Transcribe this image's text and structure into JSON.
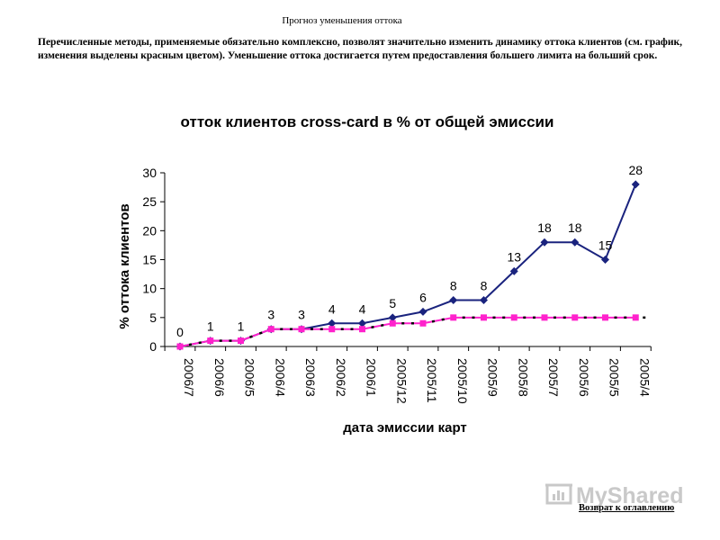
{
  "page": {
    "caption": "Прогноз уменьшения оттока",
    "intro": "Перечисленные методы, применяемые обязательно комплексно, позволят значительно изменить динамику оттока клиентов (см. график, изменения выделены красным цветом). Уменьшение оттока достигается путем предоставления большего лимита на больший срок.",
    "back_link": "Возврат к оглавлению",
    "watermark": "MyShared"
  },
  "colors": {
    "original_series": "#1a237e",
    "forecast_series": "#ff22cc",
    "axis": "#000000"
  },
  "chart_data": {
    "type": "line",
    "title": "отток клиентов cross-card в % от общей эмиссии",
    "xlabel": "дата эмиссии карт",
    "ylabel": "% оттока клиентов",
    "ylim": [
      0,
      30
    ],
    "yticks": [
      0,
      5,
      10,
      15,
      20,
      25,
      30
    ],
    "grid": false,
    "legend": "none",
    "categories": [
      "2006/7",
      "2006/6",
      "2006/5",
      "2006/4",
      "2006/3",
      "2006/2",
      "2006/1",
      "2005/12",
      "2005/11",
      "2005/10",
      "2005/9",
      "2005/8",
      "2005/7",
      "2005/6",
      "2005/5",
      "2005/4"
    ],
    "series": [
      {
        "marker": "diamond",
        "values": [
          0,
          1,
          1,
          3,
          3,
          4,
          4,
          5,
          6,
          8,
          8,
          13,
          18,
          18,
          15,
          28
        ],
        "labels": [
          "0",
          "1",
          "1",
          "3",
          "3",
          "4",
          "4",
          "5",
          "6",
          "8",
          "8",
          "13",
          "18",
          "18",
          "15",
          "28"
        ]
      },
      {
        "marker": "square",
        "values": [
          0,
          1,
          1,
          3,
          3,
          3,
          3,
          4,
          4,
          5,
          5,
          5,
          5,
          5,
          5,
          5
        ]
      }
    ]
  }
}
